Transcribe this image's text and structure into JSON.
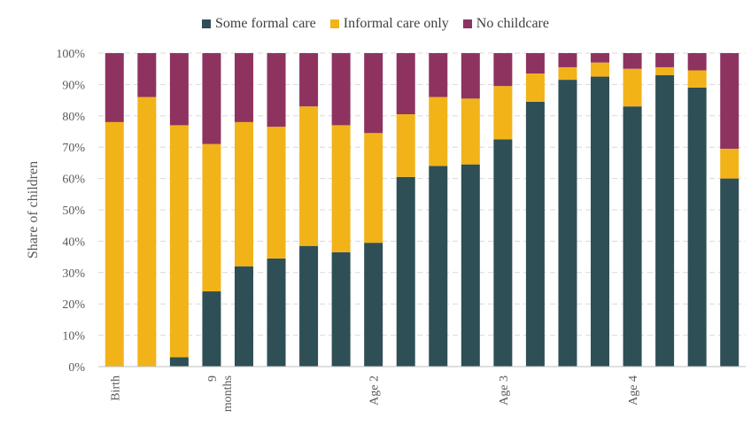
{
  "chart_data": {
    "type": "bar",
    "stacked": true,
    "ylabel": "Share of children",
    "xlabel": "",
    "ylim": [
      0,
      100
    ],
    "y_ticks": [
      "0%",
      "10%",
      "20%",
      "30%",
      "40%",
      "50%",
      "60%",
      "70%",
      "80%",
      "90%",
      "100%"
    ],
    "grid": true,
    "legend_position": "top-center",
    "x_labels": [
      {
        "index": 0,
        "lines": [
          "Birth"
        ]
      },
      {
        "index": 3,
        "lines": [
          "9",
          "months"
        ]
      },
      {
        "index": 8,
        "lines": [
          "Age 2"
        ]
      },
      {
        "index": 12,
        "lines": [
          "Age 3"
        ]
      },
      {
        "index": 16,
        "lines": [
          "Age 4"
        ]
      }
    ],
    "series": [
      {
        "name": "Some formal care",
        "color": "#2E4F55",
        "values": [
          0,
          0,
          3,
          24,
          32,
          34.5,
          38.5,
          36.5,
          39.5,
          60.5,
          64,
          64.5,
          72.5,
          84.5,
          91.5,
          92.5,
          83,
          93,
          89,
          60
        ]
      },
      {
        "name": "Informal care only",
        "color": "#F2B319",
        "values": [
          78,
          86,
          74,
          47,
          46,
          42,
          44.5,
          40.5,
          35,
          20,
          22,
          21,
          17,
          9,
          4,
          4.5,
          12,
          2.5,
          5.5,
          9.5
        ]
      },
      {
        "name": "No childcare",
        "color": "#8E3360",
        "values": [
          22,
          14,
          23,
          29,
          22,
          23.5,
          17,
          23,
          25.5,
          19.5,
          14,
          14.5,
          10.5,
          6.5,
          4.5,
          3,
          5,
          4.5,
          5.5,
          30.5
        ]
      }
    ]
  }
}
